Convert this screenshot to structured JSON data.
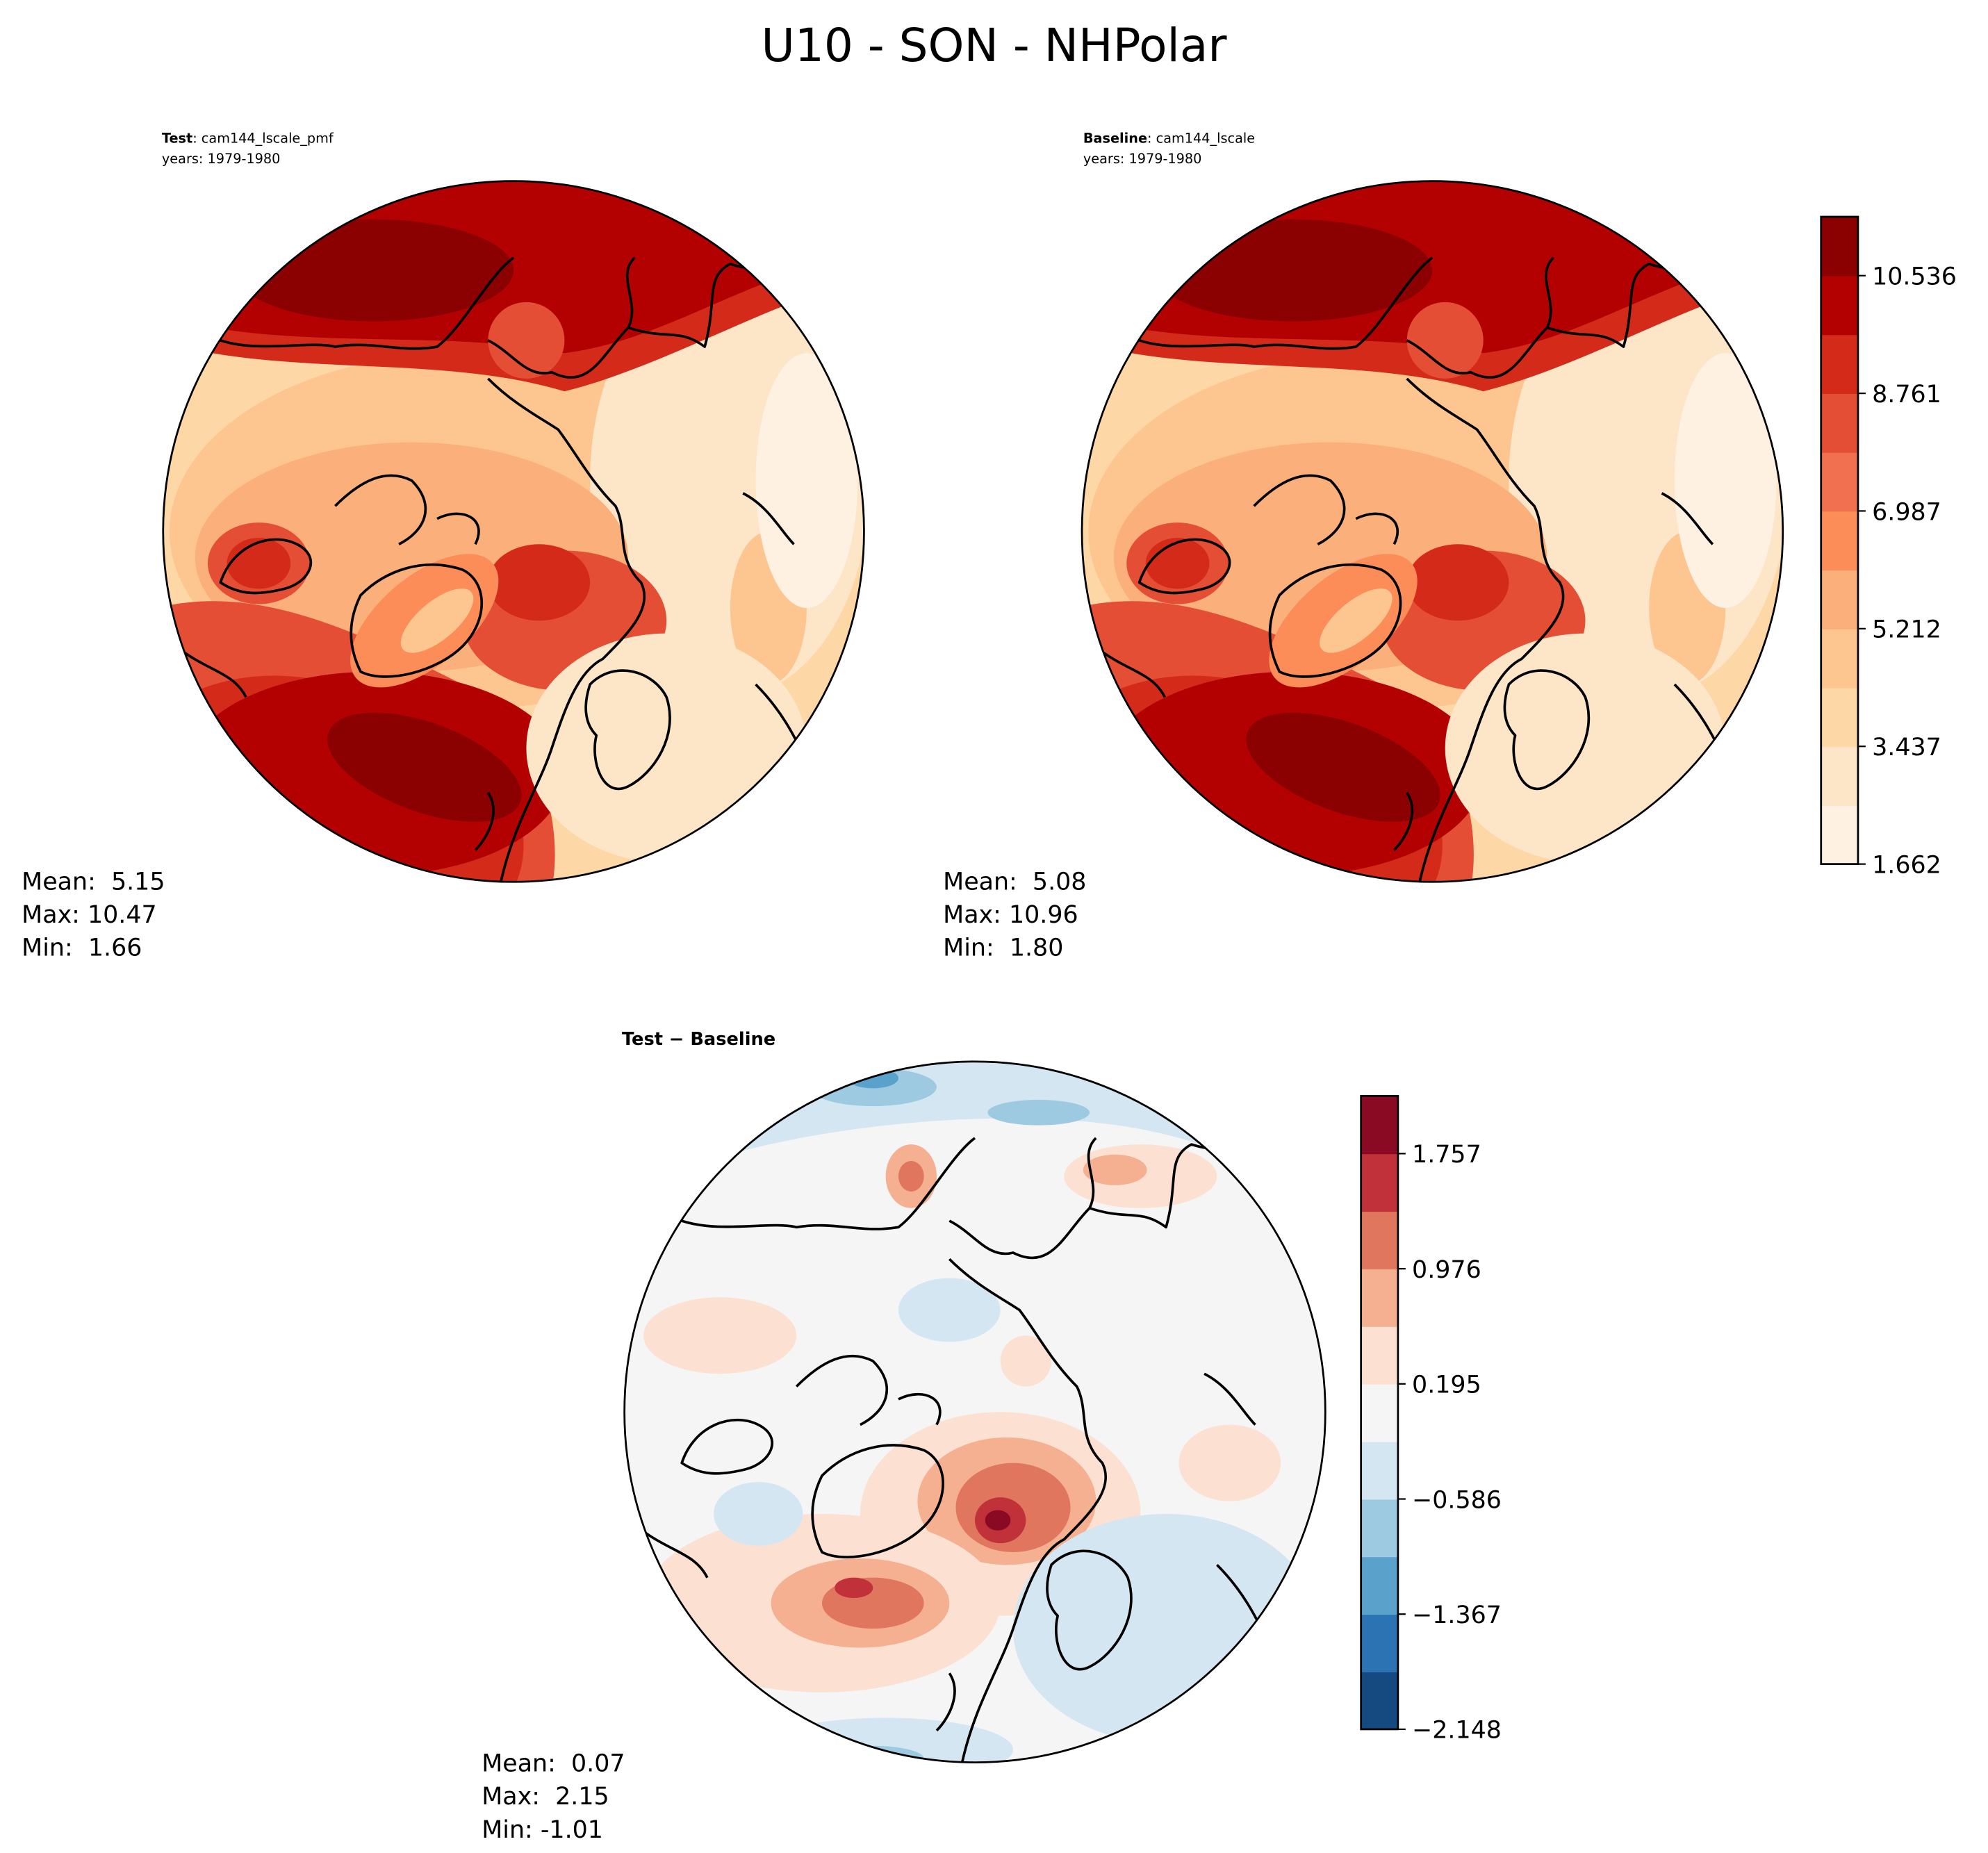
{
  "figure_title": "U10 - SON - NHPolar",
  "chart_data": [
    {
      "type": "heatmap",
      "projection": "north-polar-stereographic",
      "title_bold": "Test",
      "title_rest": ": cam144_lscale_pmf",
      "subtitle": "years: 1979-1980",
      "stats": {
        "mean": "Mean:  5.15",
        "max": "Max: 10.47",
        "min": "Min:  1.66"
      },
      "colorbar_ref": "abs"
    },
    {
      "type": "heatmap",
      "projection": "north-polar-stereographic",
      "title_bold": "Baseline",
      "title_rest": ": cam144_lscale",
      "subtitle": "years: 1979-1980",
      "stats": {
        "mean": "Mean:  5.08",
        "max": "Max: 10.96",
        "min": "Min:  1.80"
      },
      "colorbar_ref": "abs"
    },
    {
      "type": "heatmap",
      "projection": "north-polar-stereographic",
      "title_bold": "Test − Baseline",
      "stats": {
        "mean": "Mean:  0.07",
        "max": "Max:  2.15",
        "min": "Min: -1.01"
      },
      "colorbar_ref": "diff"
    }
  ],
  "colorbars": {
    "abs": {
      "range": [
        1.662,
        11.424
      ],
      "ticks": [
        "1.662",
        "3.437",
        "5.212",
        "6.987",
        "8.761",
        "10.536"
      ],
      "tick_values": [
        1.662,
        3.437,
        5.212,
        6.987,
        8.761,
        10.536
      ],
      "colors": [
        "#fef1e1",
        "#fde6c8",
        "#fdd7a6",
        "#fdc691",
        "#fbaf7b",
        "#fc8d59",
        "#f07050",
        "#e34e35",
        "#d42a1a",
        "#b30000",
        "#8b0000"
      ]
    },
    "diff": {
      "range": [
        -2.148,
        2.148
      ],
      "ticks": [
        "−2.148",
        "−1.367",
        "−0.586",
        "0.195",
        "0.976",
        "1.757"
      ],
      "tick_values": [
        -2.148,
        -1.367,
        -0.586,
        0.195,
        0.976,
        1.757
      ],
      "colors": [
        "#144a80",
        "#2c73b3",
        "#5aa1cb",
        "#9ecae1",
        "#d4e6f1",
        "#f5f5f5",
        "#fce0d2",
        "#f4b091",
        "#e0765d",
        "#c0313a",
        "#8a0a24"
      ]
    }
  }
}
